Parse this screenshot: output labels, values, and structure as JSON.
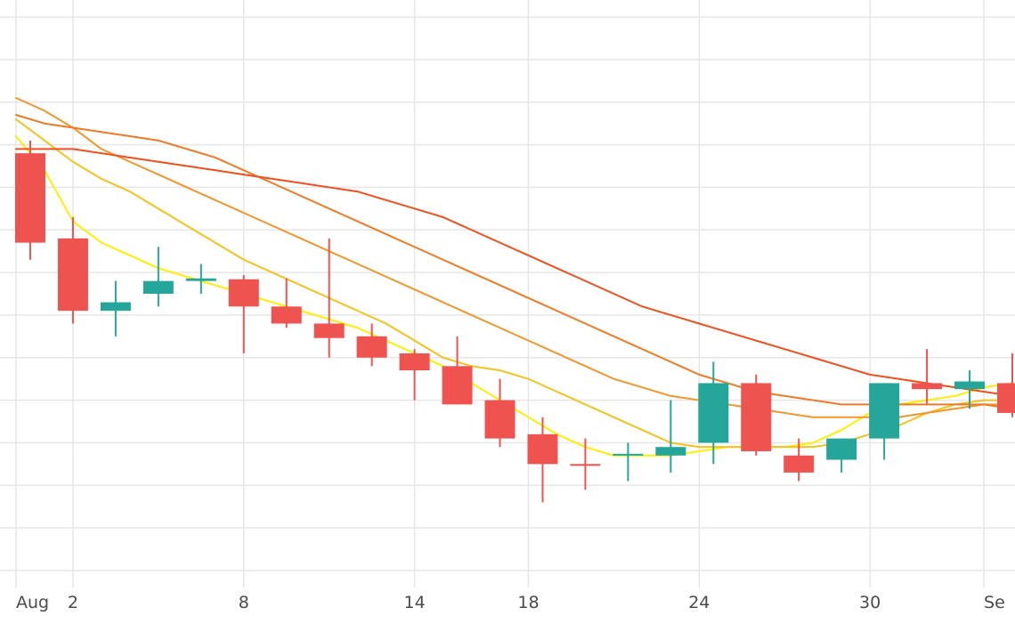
{
  "chart_data": {
    "type": "candlestick",
    "title": "",
    "xlabel": "",
    "ylabel": "",
    "grid": true,
    "colors": {
      "up": "#26a69a",
      "down": "#ef5350",
      "grid": "#e6e6e6",
      "background": "#ffffff",
      "tick_text": "#4a4a4a"
    },
    "x_ticks": [
      {
        "day": 0,
        "label": "Aug"
      },
      {
        "day": 2,
        "label": "2"
      },
      {
        "day": 8,
        "label": "8"
      },
      {
        "day": 14,
        "label": "14"
      },
      {
        "day": 18,
        "label": "18"
      },
      {
        "day": 24,
        "label": "24"
      },
      {
        "day": 30,
        "label": "30"
      },
      {
        "day": 34,
        "label": "Se"
      }
    ],
    "candles": [
      {
        "x": 0.5,
        "open": 5.4,
        "high": 5.55,
        "low": 4.15,
        "close": 4.35,
        "direction": "down"
      },
      {
        "x": 2.0,
        "open": 4.4,
        "high": 4.65,
        "low": 3.4,
        "close": 3.55,
        "direction": "down"
      },
      {
        "x": 3.5,
        "open": 3.65,
        "high": 3.9,
        "low": 3.25,
        "close": 3.55,
        "direction": "up"
      },
      {
        "x": 5.0,
        "open": 3.75,
        "high": 4.3,
        "low": 3.6,
        "close": 3.9,
        "direction": "up"
      },
      {
        "x": 6.5,
        "open": 3.9,
        "high": 4.1,
        "low": 3.75,
        "close": 3.93,
        "direction": "up"
      },
      {
        "x": 8.0,
        "open": 3.92,
        "high": 3.97,
        "low": 3.05,
        "close": 3.6,
        "direction": "down"
      },
      {
        "x": 9.5,
        "open": 3.6,
        "high": 3.93,
        "low": 3.35,
        "close": 3.4,
        "direction": "down"
      },
      {
        "x": 11.0,
        "open": 3.4,
        "high": 4.4,
        "low": 3.0,
        "close": 3.23,
        "direction": "down"
      },
      {
        "x": 12.5,
        "open": 3.25,
        "high": 3.4,
        "low": 2.9,
        "close": 3.0,
        "direction": "down"
      },
      {
        "x": 14.0,
        "open": 3.05,
        "high": 3.1,
        "low": 2.5,
        "close": 2.85,
        "direction": "down"
      },
      {
        "x": 15.5,
        "open": 2.9,
        "high": 3.25,
        "low": 2.45,
        "close": 2.45,
        "direction": "down"
      },
      {
        "x": 17.0,
        "open": 2.5,
        "high": 2.75,
        "low": 1.95,
        "close": 2.05,
        "direction": "down"
      },
      {
        "x": 18.5,
        "open": 2.1,
        "high": 2.3,
        "low": 1.3,
        "close": 1.75,
        "direction": "down"
      },
      {
        "x": 20.0,
        "open": 1.75,
        "high": 2.05,
        "low": 1.45,
        "close": 1.75,
        "direction": "down"
      },
      {
        "x": 21.5,
        "open": 1.85,
        "high": 2.0,
        "low": 1.55,
        "close": 1.87,
        "direction": "up"
      },
      {
        "x": 23.0,
        "open": 1.85,
        "high": 2.5,
        "low": 1.65,
        "close": 1.95,
        "direction": "up"
      },
      {
        "x": 24.5,
        "open": 2.0,
        "high": 2.95,
        "low": 1.75,
        "close": 2.7,
        "direction": "up"
      },
      {
        "x": 26.0,
        "open": 2.7,
        "high": 2.8,
        "low": 1.85,
        "close": 1.9,
        "direction": "down"
      },
      {
        "x": 27.5,
        "open": 1.85,
        "high": 2.05,
        "low": 1.55,
        "close": 1.65,
        "direction": "down"
      },
      {
        "x": 29.0,
        "open": 1.8,
        "high": 2.05,
        "low": 1.65,
        "close": 2.05,
        "direction": "up"
      },
      {
        "x": 30.5,
        "open": 2.05,
        "high": 2.7,
        "low": 1.8,
        "close": 2.7,
        "direction": "up"
      },
      {
        "x": 32.0,
        "open": 2.7,
        "high": 3.1,
        "low": 2.45,
        "close": 2.63,
        "direction": "down"
      },
      {
        "x": 33.5,
        "open": 2.63,
        "high": 2.85,
        "low": 2.4,
        "close": 2.72,
        "direction": "up"
      },
      {
        "x": 35.0,
        "open": 2.7,
        "high": 3.05,
        "low": 2.3,
        "close": 2.35,
        "direction": "down"
      }
    ],
    "series": [
      {
        "color": "#ffee00",
        "type": "line",
        "points": [
          [
            0,
            5.6
          ],
          [
            1,
            5.2
          ],
          [
            2,
            4.6
          ],
          [
            3,
            4.35
          ],
          [
            4,
            4.2
          ],
          [
            5,
            4.05
          ],
          [
            6,
            3.95
          ],
          [
            7,
            3.85
          ],
          [
            8,
            3.75
          ],
          [
            9,
            3.65
          ],
          [
            10,
            3.55
          ],
          [
            11,
            3.45
          ],
          [
            12,
            3.35
          ],
          [
            13,
            3.2
          ],
          [
            14,
            3.05
          ],
          [
            15,
            2.9
          ],
          [
            16,
            2.7
          ],
          [
            17,
            2.5
          ],
          [
            18,
            2.3
          ],
          [
            19,
            2.1
          ],
          [
            20,
            1.95
          ],
          [
            21,
            1.85
          ],
          [
            22,
            1.85
          ],
          [
            23,
            1.85
          ],
          [
            24,
            1.9
          ],
          [
            25,
            1.95
          ],
          [
            26,
            1.95
          ],
          [
            27,
            1.95
          ],
          [
            28,
            2.0
          ],
          [
            29,
            2.15
          ],
          [
            30,
            2.35
          ],
          [
            31,
            2.45
          ],
          [
            32,
            2.5
          ],
          [
            33,
            2.55
          ],
          [
            34,
            2.65
          ],
          [
            35,
            2.7
          ]
        ]
      },
      {
        "color": "#f5c21b",
        "type": "line",
        "points": [
          [
            0,
            5.8
          ],
          [
            1,
            5.55
          ],
          [
            2,
            5.3
          ],
          [
            3,
            5.1
          ],
          [
            4,
            4.95
          ],
          [
            5,
            4.75
          ],
          [
            6,
            4.55
          ],
          [
            7,
            4.35
          ],
          [
            8,
            4.15
          ],
          [
            9,
            4.0
          ],
          [
            10,
            3.85
          ],
          [
            11,
            3.7
          ],
          [
            12,
            3.55
          ],
          [
            13,
            3.4
          ],
          [
            14,
            3.2
          ],
          [
            15,
            3.0
          ],
          [
            16,
            2.9
          ],
          [
            17,
            2.85
          ],
          [
            18,
            2.75
          ],
          [
            19,
            2.6
          ],
          [
            20,
            2.45
          ],
          [
            21,
            2.3
          ],
          [
            22,
            2.15
          ],
          [
            23,
            2.0
          ],
          [
            24,
            1.95
          ],
          [
            25,
            1.95
          ],
          [
            26,
            1.95
          ],
          [
            27,
            1.95
          ],
          [
            28,
            1.95
          ],
          [
            29,
            2.0
          ],
          [
            30,
            2.1
          ],
          [
            31,
            2.2
          ],
          [
            32,
            2.35
          ],
          [
            33,
            2.45
          ],
          [
            34,
            2.5
          ],
          [
            35,
            2.5
          ]
        ]
      },
      {
        "color": "#f4952b",
        "type": "line",
        "points": [
          [
            0,
            6.05
          ],
          [
            1,
            5.9
          ],
          [
            2,
            5.7
          ],
          [
            3,
            5.45
          ],
          [
            4,
            5.3
          ],
          [
            5,
            5.15
          ],
          [
            6,
            5.0
          ],
          [
            7,
            4.85
          ],
          [
            8,
            4.7
          ],
          [
            9,
            4.55
          ],
          [
            10,
            4.4
          ],
          [
            11,
            4.25
          ],
          [
            12,
            4.1
          ],
          [
            13,
            3.95
          ],
          [
            14,
            3.8
          ],
          [
            15,
            3.65
          ],
          [
            16,
            3.5
          ],
          [
            17,
            3.35
          ],
          [
            18,
            3.2
          ],
          [
            19,
            3.05
          ],
          [
            20,
            2.9
          ],
          [
            21,
            2.75
          ],
          [
            22,
            2.65
          ],
          [
            23,
            2.55
          ],
          [
            24,
            2.5
          ],
          [
            25,
            2.45
          ],
          [
            26,
            2.4
          ],
          [
            27,
            2.35
          ],
          [
            28,
            2.3
          ],
          [
            29,
            2.3
          ],
          [
            30,
            2.3
          ],
          [
            31,
            2.3
          ],
          [
            32,
            2.35
          ],
          [
            33,
            2.4
          ],
          [
            34,
            2.45
          ],
          [
            35,
            2.45
          ]
        ]
      },
      {
        "color": "#f07a22",
        "type": "line",
        "points": [
          [
            0,
            5.85
          ],
          [
            1,
            5.75
          ],
          [
            2,
            5.7
          ],
          [
            3,
            5.65
          ],
          [
            4,
            5.6
          ],
          [
            5,
            5.55
          ],
          [
            6,
            5.45
          ],
          [
            7,
            5.35
          ],
          [
            8,
            5.2
          ],
          [
            9,
            5.05
          ],
          [
            10,
            4.9
          ],
          [
            11,
            4.75
          ],
          [
            12,
            4.6
          ],
          [
            13,
            4.45
          ],
          [
            14,
            4.3
          ],
          [
            15,
            4.15
          ],
          [
            16,
            4.0
          ],
          [
            17,
            3.85
          ],
          [
            18,
            3.7
          ],
          [
            19,
            3.55
          ],
          [
            20,
            3.4
          ],
          [
            21,
            3.25
          ],
          [
            22,
            3.1
          ],
          [
            23,
            2.95
          ],
          [
            24,
            2.8
          ],
          [
            25,
            2.7
          ],
          [
            26,
            2.6
          ],
          [
            27,
            2.55
          ],
          [
            28,
            2.5
          ],
          [
            29,
            2.45
          ],
          [
            30,
            2.45
          ],
          [
            31,
            2.45
          ],
          [
            32,
            2.45
          ],
          [
            33,
            2.45
          ],
          [
            34,
            2.45
          ],
          [
            35,
            2.4
          ]
        ]
      },
      {
        "color": "#f04f1c",
        "type": "line",
        "points": [
          [
            0,
            5.45
          ],
          [
            1,
            5.45
          ],
          [
            2,
            5.45
          ],
          [
            3,
            5.4
          ],
          [
            4,
            5.35
          ],
          [
            5,
            5.3
          ],
          [
            6,
            5.25
          ],
          [
            7,
            5.2
          ],
          [
            8,
            5.15
          ],
          [
            9,
            5.1
          ],
          [
            10,
            5.05
          ],
          [
            11,
            5.0
          ],
          [
            12,
            4.95
          ],
          [
            13,
            4.85
          ],
          [
            14,
            4.75
          ],
          [
            15,
            4.65
          ],
          [
            16,
            4.5
          ],
          [
            17,
            4.35
          ],
          [
            18,
            4.2
          ],
          [
            19,
            4.05
          ],
          [
            20,
            3.9
          ],
          [
            21,
            3.75
          ],
          [
            22,
            3.6
          ],
          [
            23,
            3.5
          ],
          [
            24,
            3.4
          ],
          [
            25,
            3.3
          ],
          [
            26,
            3.2
          ],
          [
            27,
            3.1
          ],
          [
            28,
            3.0
          ],
          [
            29,
            2.9
          ],
          [
            30,
            2.8
          ],
          [
            31,
            2.75
          ],
          [
            32,
            2.7
          ],
          [
            33,
            2.65
          ],
          [
            34,
            2.6
          ],
          [
            35,
            2.55
          ]
        ]
      }
    ],
    "x_range": [
      0,
      35
    ],
    "y_range": [
      0.3,
      7.2
    ]
  }
}
